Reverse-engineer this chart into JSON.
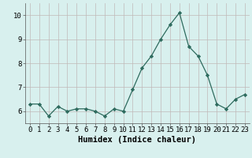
{
  "x": [
    0,
    1,
    2,
    3,
    4,
    5,
    6,
    7,
    8,
    9,
    10,
    11,
    12,
    13,
    14,
    15,
    16,
    17,
    18,
    19,
    20,
    21,
    22,
    23
  ],
  "y": [
    6.3,
    6.3,
    5.8,
    6.2,
    6.0,
    6.1,
    6.1,
    6.0,
    5.8,
    6.1,
    6.0,
    6.9,
    7.8,
    8.3,
    9.0,
    9.6,
    10.1,
    8.7,
    8.3,
    7.5,
    6.3,
    6.1,
    6.5,
    6.7
  ],
  "line_color": "#2e6b5e",
  "marker": "D",
  "marker_size": 2.2,
  "bg_color": "#d8f0ee",
  "grid_color": "#c0b8b8",
  "xlabel": "Humidex (Indice chaleur)",
  "xlim": [
    -0.5,
    23.5
  ],
  "ylim": [
    5.5,
    10.5
  ],
  "yticks": [
    6,
    7,
    8,
    9,
    10
  ],
  "xticks": [
    0,
    1,
    2,
    3,
    4,
    5,
    6,
    7,
    8,
    9,
    10,
    11,
    12,
    13,
    14,
    15,
    16,
    17,
    18,
    19,
    20,
    21,
    22,
    23
  ],
  "label_fontsize": 7.5,
  "tick_fontsize": 6.5
}
